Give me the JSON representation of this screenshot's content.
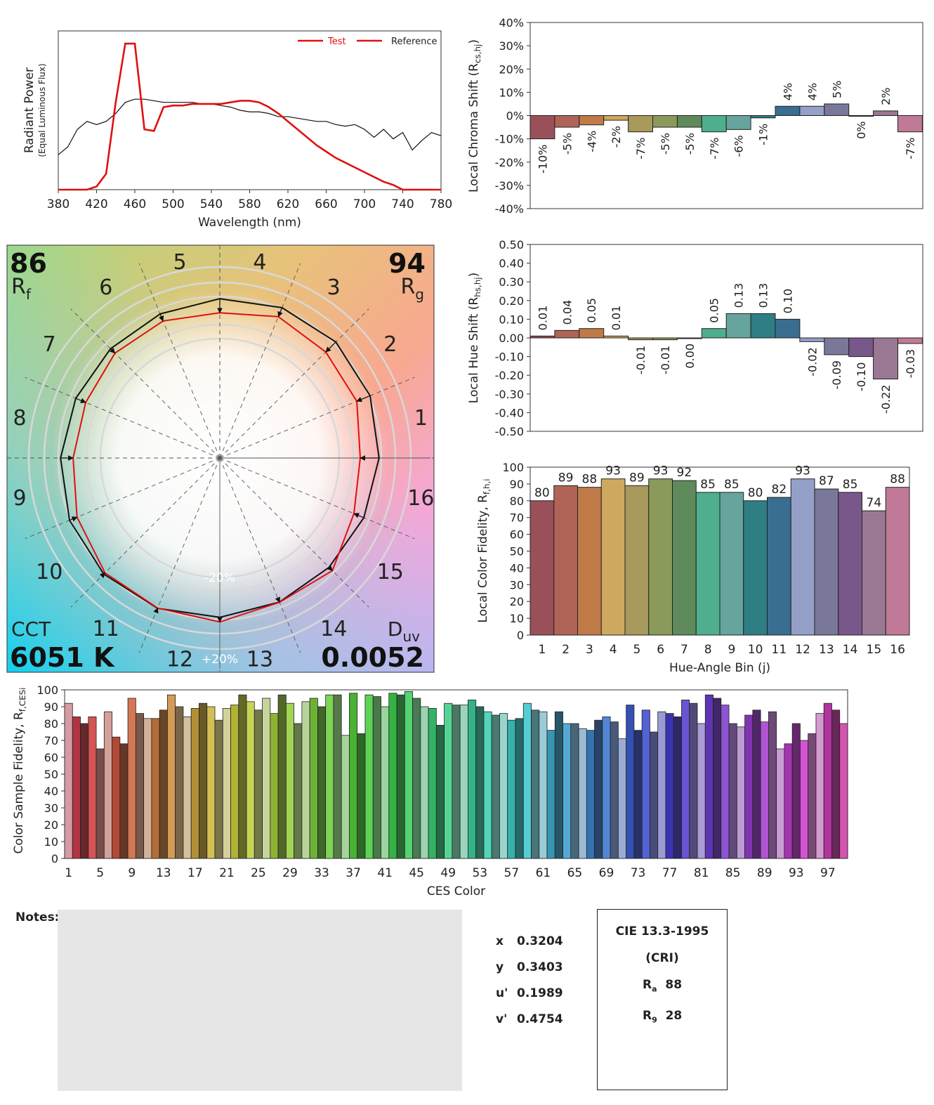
{
  "spd": {
    "ylabel": "Radiant Power",
    "ylabel_sub": "(Equal Luminous Flux)",
    "xlabel": "Wavelength (nm)",
    "legend_test": "Test",
    "legend_ref": "Reference",
    "xticks": [
      "380",
      "420",
      "460",
      "500",
      "540",
      "580",
      "620",
      "660",
      "700",
      "740",
      "780"
    ]
  },
  "chroma_shift": {
    "ylabel_main": "Local Chroma Shift (R",
    "ylabel_sub": "cs,hj",
    "ylabel_end": ")",
    "yticks": [
      "40%",
      "30%",
      "20%",
      "10%",
      "0%",
      "-10%",
      "-20%",
      "-30%",
      "-40%"
    ],
    "labels": [
      "-10%",
      "-5%",
      "-4%",
      "-2%",
      "-7%",
      "-5%",
      "-5%",
      "-7%",
      "-6%",
      "-1%",
      "4%",
      "4%",
      "5%",
      "0%",
      "2%",
      "-7%"
    ]
  },
  "hue_shift": {
    "ylabel_main": "Local Hue Shift (R",
    "ylabel_sub": "hs,hj",
    "ylabel_end": ")",
    "yticks": [
      "0.50",
      "0.40",
      "0.30",
      "0.20",
      "0.10",
      "0.00",
      "-0.10",
      "-0.20",
      "-0.30",
      "-0.40",
      "-0.50"
    ],
    "labels": [
      "0.01",
      "0.04",
      "0.05",
      "0.01",
      "-0.01",
      "-0.01",
      "0.00",
      "0.05",
      "0.13",
      "0.13",
      "0.10",
      "-0.02",
      "-0.09",
      "-0.10",
      "-0.22",
      "-0.03"
    ]
  },
  "local_fidelity": {
    "ylabel_main": "Local Color Fidelity, R",
    "ylabel_sub": "f,h,i",
    "xlabel": "Hue-Angle Bin (j)",
    "yticks": [
      "100",
      "90",
      "80",
      "70",
      "60",
      "50",
      "40",
      "30",
      "20",
      "10",
      "0"
    ],
    "xticks": [
      "1",
      "2",
      "3",
      "4",
      "5",
      "6",
      "7",
      "8",
      "9",
      "10",
      "11",
      "12",
      "13",
      "14",
      "15",
      "16"
    ],
    "labels": [
      "80",
      "89",
      "88",
      "93",
      "89",
      "93",
      "92",
      "85",
      "85",
      "80",
      "82",
      "93",
      "87",
      "85",
      "74",
      "88"
    ]
  },
  "ces": {
    "ylabel_main": "Color Sample Fidelity, R",
    "ylabel_sub": "f,CESi",
    "xlabel": "CES Color",
    "yticks": [
      "100",
      "90",
      "80",
      "70",
      "60",
      "50",
      "40",
      "30",
      "20",
      "10",
      "0"
    ],
    "xticks": [
      "1",
      "5",
      "9",
      "13",
      "17",
      "21",
      "25",
      "29",
      "33",
      "37",
      "41",
      "45",
      "49",
      "53",
      "57",
      "61",
      "65",
      "69",
      "73",
      "77",
      "81",
      "85",
      "89",
      "93",
      "97"
    ]
  },
  "vector": {
    "rf_value": "86",
    "rf_label": "R",
    "rf_sub": "f",
    "rg_value": "94",
    "rg_label": "R",
    "rg_sub": "g",
    "cct_label": "CCT",
    "cct_value": "6051 K",
    "duv_label": "D",
    "duv_sub": "uv",
    "duv_value": "0.0052",
    "ring_minus": "-20%",
    "ring_plus": "+20%",
    "bin_labels": [
      "1",
      "2",
      "3",
      "4",
      "5",
      "6",
      "7",
      "8",
      "9",
      "10",
      "11",
      "12",
      "13",
      "14",
      "15",
      "16"
    ]
  },
  "notes": {
    "label": "Notes:"
  },
  "chromaticity": {
    "x_label": "x",
    "x_value": "0.3204",
    "y_label": "y",
    "y_value": "0.3403",
    "u_label": "u'",
    "u_value": "0.1989",
    "v_label": "v'",
    "v_value": "0.4754"
  },
  "cri": {
    "title": "CIE 13.3-1995",
    "subtitle": "(CRI)",
    "ra_label": "R",
    "ra_sub": "a",
    "ra_value": "88",
    "r9_label": "R",
    "r9_sub": "9",
    "r9_value": "28"
  },
  "colors": {
    "bins": [
      "#9a5058",
      "#b06458",
      "#c07a48",
      "#cfa860",
      "#a89a5c",
      "#8a9a5a",
      "#5e8a5c",
      "#4eae8e",
      "#66a49e",
      "#2e7e84",
      "#3a6e90",
      "#94a0c8",
      "#7a7898",
      "#78588a",
      "#9a7894",
      "#c07a98"
    ]
  },
  "chart_data": [
    {
      "type": "line",
      "title": "",
      "xlabel": "Wavelength (nm)",
      "ylabel": "Radiant Power (Equal Luminous Flux)",
      "xlim": [
        380,
        780
      ],
      "ylim": [
        0,
        1
      ],
      "series": [
        {
          "name": "Test",
          "x": [
            380,
            400,
            410,
            420,
            430,
            440,
            450,
            460,
            470,
            480,
            490,
            500,
            510,
            520,
            530,
            540,
            550,
            560,
            570,
            580,
            590,
            600,
            610,
            620,
            630,
            640,
            650,
            660,
            670,
            680,
            690,
            700,
            710,
            720,
            730,
            740,
            760,
            780
          ],
          "values": [
            0,
            0,
            0,
            0.02,
            0.1,
            0.55,
            0.92,
            0.92,
            0.38,
            0.37,
            0.52,
            0.53,
            0.53,
            0.54,
            0.54,
            0.54,
            0.54,
            0.55,
            0.56,
            0.56,
            0.55,
            0.52,
            0.48,
            0.43,
            0.38,
            0.33,
            0.28,
            0.24,
            0.2,
            0.17,
            0.14,
            0.11,
            0.08,
            0.05,
            0.03,
            0,
            0,
            0
          ]
        },
        {
          "name": "Reference",
          "x": [
            380,
            390,
            400,
            410,
            420,
            430,
            440,
            450,
            460,
            470,
            480,
            490,
            500,
            510,
            520,
            530,
            540,
            550,
            560,
            570,
            580,
            590,
            600,
            610,
            620,
            630,
            640,
            650,
            660,
            670,
            680,
            690,
            700,
            710,
            720,
            730,
            740,
            750,
            760,
            770,
            780
          ],
          "values": [
            0.22,
            0.27,
            0.38,
            0.43,
            0.41,
            0.43,
            0.48,
            0.55,
            0.57,
            0.57,
            0.56,
            0.55,
            0.55,
            0.55,
            0.55,
            0.54,
            0.54,
            0.53,
            0.52,
            0.5,
            0.49,
            0.49,
            0.48,
            0.46,
            0.46,
            0.45,
            0.44,
            0.43,
            0.43,
            0.41,
            0.4,
            0.41,
            0.38,
            0.33,
            0.38,
            0.32,
            0.36,
            0.25,
            0.31,
            0.36,
            0.34
          ]
        }
      ]
    },
    {
      "type": "bar",
      "title": "",
      "xlabel": "",
      "ylabel": "Local Chroma Shift (Rcs,hj)",
      "categories": [
        "1",
        "2",
        "3",
        "4",
        "5",
        "6",
        "7",
        "8",
        "9",
        "10",
        "11",
        "12",
        "13",
        "14",
        "15",
        "16"
      ],
      "values": [
        -10,
        -5,
        -4,
        -2,
        -7,
        -5,
        -5,
        -7,
        -6,
        -1,
        4,
        4,
        5,
        0,
        2,
        -7
      ],
      "ylim": [
        -40,
        40
      ],
      "unit": "%"
    },
    {
      "type": "bar",
      "title": "",
      "xlabel": "",
      "ylabel": "Local Hue Shift (Rhs,hj)",
      "categories": [
        "1",
        "2",
        "3",
        "4",
        "5",
        "6",
        "7",
        "8",
        "9",
        "10",
        "11",
        "12",
        "13",
        "14",
        "15",
        "16"
      ],
      "values": [
        0.01,
        0.04,
        0.05,
        0.01,
        -0.01,
        -0.01,
        0.0,
        0.05,
        0.13,
        0.13,
        0.1,
        -0.02,
        -0.09,
        -0.1,
        -0.22,
        -0.03
      ],
      "ylim": [
        -0.5,
        0.5
      ]
    },
    {
      "type": "bar",
      "title": "",
      "xlabel": "Hue-Angle Bin (j)",
      "ylabel": "Local Color Fidelity, Rf,h,i",
      "categories": [
        "1",
        "2",
        "3",
        "4",
        "5",
        "6",
        "7",
        "8",
        "9",
        "10",
        "11",
        "12",
        "13",
        "14",
        "15",
        "16"
      ],
      "values": [
        80,
        89,
        88,
        93,
        89,
        93,
        92,
        85,
        85,
        80,
        82,
        93,
        87,
        85,
        74,
        88
      ],
      "ylim": [
        0,
        100
      ]
    },
    {
      "type": "bar",
      "title": "",
      "xlabel": "CES Color",
      "ylabel": "Color Sample Fidelity, Rf,CESi",
      "categories": [
        "1",
        "2",
        "3",
        "4",
        "5",
        "6",
        "7",
        "8",
        "9",
        "10",
        "11",
        "12",
        "13",
        "14",
        "15",
        "16",
        "17",
        "18",
        "19",
        "20",
        "21",
        "22",
        "23",
        "24",
        "25",
        "26",
        "27",
        "28",
        "29",
        "30",
        "31",
        "32",
        "33",
        "34",
        "35",
        "36",
        "37",
        "38",
        "39",
        "40",
        "41",
        "42",
        "43",
        "44",
        "45",
        "46",
        "47",
        "48",
        "49",
        "50",
        "51",
        "52",
        "53",
        "54",
        "55",
        "56",
        "57",
        "58",
        "59",
        "60",
        "61",
        "62",
        "63",
        "64",
        "65",
        "66",
        "67",
        "68",
        "69",
        "70",
        "71",
        "72",
        "73",
        "74",
        "75",
        "76",
        "77",
        "78",
        "79",
        "80",
        "81",
        "82",
        "83",
        "84",
        "85",
        "86",
        "87",
        "88",
        "89",
        "90",
        "91",
        "92",
        "93",
        "94",
        "95",
        "96",
        "97",
        "98",
        "99"
      ],
      "values": [
        92,
        84,
        80,
        84,
        65,
        87,
        72,
        68,
        95,
        86,
        83,
        83,
        88,
        97,
        90,
        84,
        89,
        92,
        90,
        82,
        89,
        91,
        97,
        93,
        88,
        95,
        86,
        97,
        92,
        80,
        93,
        95,
        90,
        97,
        97,
        73,
        98,
        74,
        97,
        96,
        90,
        98,
        97,
        99,
        95,
        90,
        89,
        79,
        92,
        91,
        91,
        94,
        90,
        87,
        85,
        86,
        82,
        83,
        92,
        88,
        87,
        76,
        87,
        80,
        80,
        77,
        76,
        82,
        84,
        81,
        71,
        91,
        76,
        88,
        75,
        87,
        86,
        84,
        94,
        92,
        80,
        97,
        95,
        91,
        80,
        78,
        85,
        88,
        81,
        87,
        65,
        68,
        80,
        70,
        74,
        86,
        92,
        88,
        80
      ],
      "ylim": [
        0,
        100
      ]
    },
    {
      "type": "scatter",
      "title": "Color Vector Graphic",
      "xlabel": "",
      "ylabel": "",
      "categories": [
        "1",
        "2",
        "3",
        "4",
        "5",
        "6",
        "7",
        "8",
        "9",
        "10",
        "11",
        "12",
        "13",
        "14",
        "15",
        "16"
      ],
      "series": [
        {
          "name": "Reference radius",
          "values": [
            1,
            1,
            1,
            1,
            1,
            1,
            1,
            1,
            1,
            1,
            1,
            1,
            1,
            1,
            1,
            1
          ]
        },
        {
          "name": "Test radius",
          "values": [
            0.9,
            0.95,
            0.96,
            0.98,
            0.93,
            0.95,
            0.95,
            0.93,
            0.94,
            0.99,
            1.04,
            1.04,
            1.05,
            1.0,
            1.02,
            0.93
          ]
        }
      ],
      "ylim": [
        0.6,
        1.2
      ]
    }
  ]
}
